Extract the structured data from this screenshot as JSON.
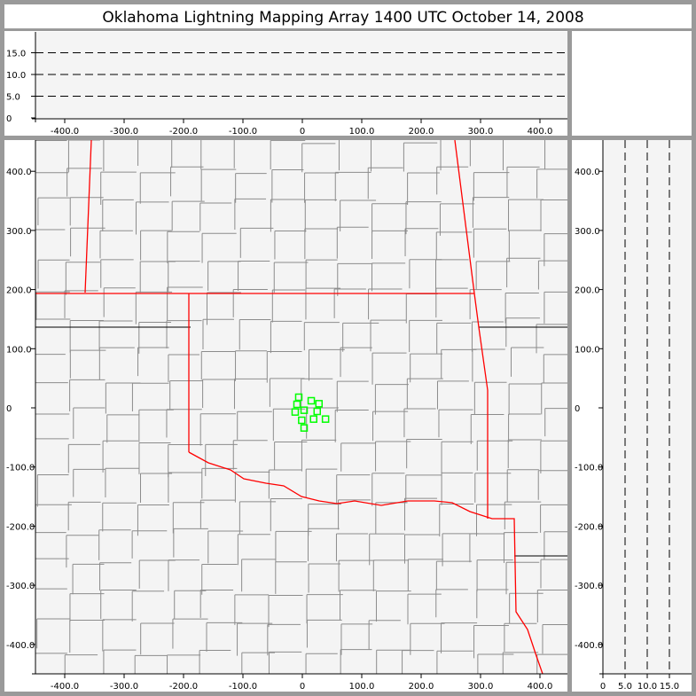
{
  "title": "Oklahoma Lightning Mapping Array   1400 UTC  October 14, 2008",
  "colors": {
    "frame": "#9a9a9a",
    "plot_bg": "#f4f4f4",
    "state_border": "#ff0000",
    "county": "#8c8c8c",
    "source": "#00ff00"
  },
  "chart_data": {
    "type": "scatter",
    "plan_view": {
      "xlim": [
        -450,
        450
      ],
      "ylim": [
        -450,
        450
      ],
      "xticks": [
        "-400.0",
        "-300.0",
        "-200.0",
        "-100.0",
        "0",
        "100.0",
        "200.0",
        "300.0",
        "400.0"
      ],
      "yticks": [
        "400.0",
        "300.0",
        "200.0",
        "100.0",
        "0",
        "-100.0",
        "-200.0",
        "-300.0",
        "-400.0"
      ],
      "points": [
        [
          -6,
          18
        ],
        [
          15,
          12
        ],
        [
          28,
          7
        ],
        [
          -9,
          6
        ],
        [
          3,
          -4
        ],
        [
          -12,
          -7
        ],
        [
          25,
          -6
        ],
        [
          -1,
          -21
        ],
        [
          19,
          -19
        ],
        [
          39,
          -19
        ],
        [
          3,
          -34
        ]
      ]
    },
    "altitude_x": {
      "ylim": [
        0,
        20
      ],
      "yticks": [
        "15.0",
        "10.0",
        "5.0",
        "0"
      ],
      "dashed_levels": [
        5,
        10,
        15
      ],
      "xticks": [
        "-400.0",
        "-300.0",
        "-200.0",
        "-100.0",
        "0",
        "100.0",
        "200.0",
        "300.0",
        "400.0"
      ]
    },
    "altitude_y": {
      "xlim": [
        0,
        20
      ],
      "xticks": [
        "0",
        "5.0",
        "10.0",
        "15.0"
      ],
      "dashed_levels": [
        5,
        10,
        15
      ],
      "yticks": [
        "400.0",
        "300.0",
        "200.0",
        "100.0",
        "0",
        "-100.0",
        "-200.0",
        "-300.0",
        "-400.0"
      ]
    }
  }
}
